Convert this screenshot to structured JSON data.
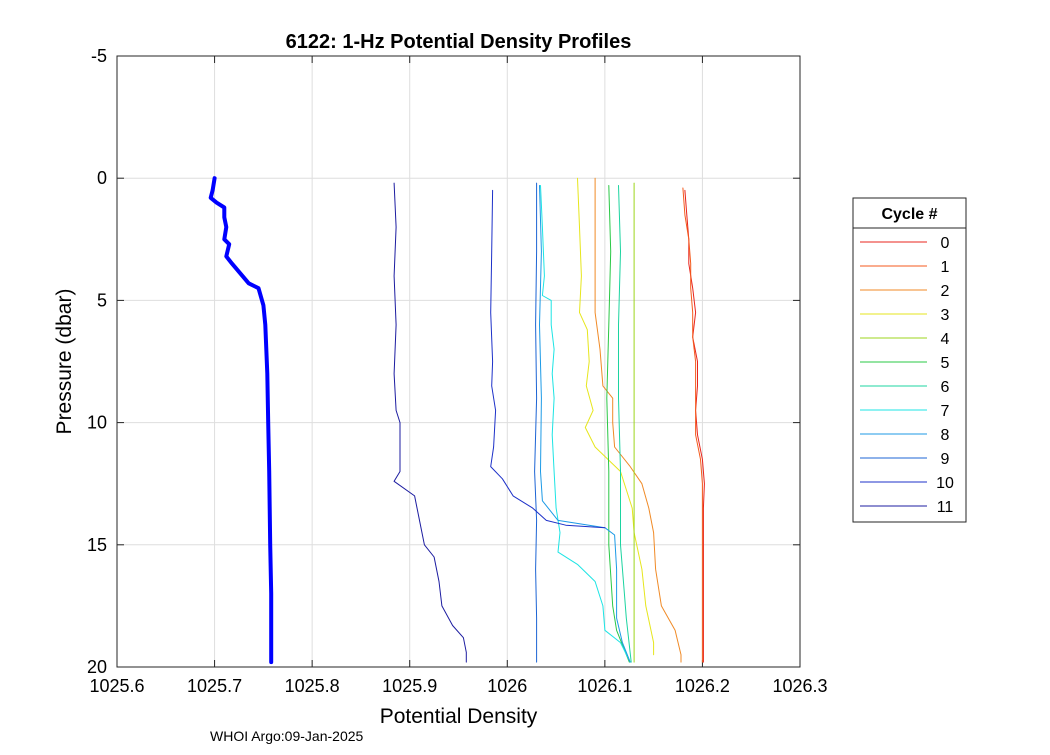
{
  "chart_data": {
    "type": "line",
    "title": "6122: 1-Hz Potential Density Profiles",
    "xlabel": "Potential Density",
    "ylabel": "Pressure (dbar)",
    "xlim": [
      1025.6,
      1026.3
    ],
    "ylim": [
      -5,
      20
    ],
    "y_reversed": true,
    "grid": true,
    "x_ticks": [
      1025.6,
      1025.7,
      1025.8,
      1025.9,
      1026,
      1026.1,
      1026.2,
      1026.3
    ],
    "x_tick_labels": [
      "1025.6",
      "1025.7",
      "1025.8",
      "1025.9",
      "1026",
      "1026.1",
      "1026.2",
      "1026.3"
    ],
    "y_ticks": [
      -5,
      0,
      5,
      10,
      15,
      20
    ],
    "y_tick_labels": [
      "-5",
      "0",
      "5",
      "10",
      "15",
      "20"
    ],
    "legend": {
      "title": "Cycle #",
      "placement": "outside-right"
    },
    "series": [
      {
        "name": "0",
        "color": "#e8241c",
        "width": 1,
        "points": [
          [
            1026.182,
            0.5
          ],
          [
            1026.184,
            1.5
          ],
          [
            1026.186,
            2.5
          ],
          [
            1026.186,
            3.5
          ],
          [
            1026.19,
            4.5
          ],
          [
            1026.193,
            5.5
          ],
          [
            1026.19,
            6.5
          ],
          [
            1026.195,
            7.5
          ],
          [
            1026.195,
            8.5
          ],
          [
            1026.193,
            9.5
          ],
          [
            1026.195,
            10.5
          ],
          [
            1026.2,
            11.5
          ],
          [
            1026.202,
            12.5
          ],
          [
            1026.201,
            13.5
          ],
          [
            1026.201,
            15
          ],
          [
            1026.201,
            17
          ],
          [
            1026.201,
            19.8
          ]
        ]
      },
      {
        "name": "1",
        "color": "#f45a1c",
        "width": 1,
        "points": [
          [
            1026.18,
            0.4
          ],
          [
            1026.182,
            1.5
          ],
          [
            1026.186,
            2.5
          ],
          [
            1026.188,
            3.5
          ],
          [
            1026.188,
            4.5
          ],
          [
            1026.19,
            5.5
          ],
          [
            1026.19,
            6.5
          ],
          [
            1026.193,
            7.5
          ],
          [
            1026.193,
            8.5
          ],
          [
            1026.193,
            9.5
          ],
          [
            1026.193,
            10.5
          ],
          [
            1026.198,
            11.5
          ],
          [
            1026.2,
            12.5
          ],
          [
            1026.2,
            13.5
          ],
          [
            1026.2,
            15
          ],
          [
            1026.2,
            17
          ],
          [
            1026.2,
            19.8
          ]
        ]
      },
      {
        "name": "2",
        "color": "#f08a26",
        "width": 1,
        "points": [
          [
            1026.09,
            0
          ],
          [
            1026.09,
            3
          ],
          [
            1026.09,
            5.5
          ],
          [
            1026.095,
            7
          ],
          [
            1026.098,
            8.5
          ],
          [
            1026.108,
            9
          ],
          [
            1026.108,
            10
          ],
          [
            1026.11,
            11
          ],
          [
            1026.126,
            11.8
          ],
          [
            1026.138,
            12.5
          ],
          [
            1026.145,
            13.5
          ],
          [
            1026.15,
            14.5
          ],
          [
            1026.152,
            16
          ],
          [
            1026.158,
            17.5
          ],
          [
            1026.172,
            18.5
          ],
          [
            1026.178,
            19.5
          ],
          [
            1026.178,
            19.8
          ]
        ]
      },
      {
        "name": "3",
        "color": "#e6e61c",
        "width": 1,
        "points": [
          [
            1026.072,
            0
          ],
          [
            1026.074,
            2
          ],
          [
            1026.076,
            4
          ],
          [
            1026.074,
            5.5
          ],
          [
            1026.082,
            6.2
          ],
          [
            1026.084,
            7.5
          ],
          [
            1026.081,
            8.5
          ],
          [
            1026.088,
            9.5
          ],
          [
            1026.08,
            10.2
          ],
          [
            1026.09,
            11
          ],
          [
            1026.116,
            12
          ],
          [
            1026.128,
            13.5
          ],
          [
            1026.13,
            14.5
          ],
          [
            1026.138,
            16
          ],
          [
            1026.142,
            17.5
          ],
          [
            1026.15,
            19
          ],
          [
            1026.15,
            19.5
          ]
        ]
      },
      {
        "name": "4",
        "color": "#9cd41c",
        "width": 1,
        "points": [
          [
            1026.13,
            0.2
          ],
          [
            1026.13,
            5
          ],
          [
            1026.13,
            10
          ],
          [
            1026.13,
            15
          ],
          [
            1026.13,
            19.8
          ]
        ]
      },
      {
        "name": "5",
        "color": "#2ac846",
        "width": 1,
        "points": [
          [
            1026.104,
            0.3
          ],
          [
            1026.106,
            3
          ],
          [
            1026.104,
            6
          ],
          [
            1026.102,
            9
          ],
          [
            1026.104,
            12
          ],
          [
            1026.104,
            15
          ],
          [
            1026.108,
            17.5
          ],
          [
            1026.112,
            18.5
          ],
          [
            1026.125,
            19.8
          ]
        ]
      },
      {
        "name": "6",
        "color": "#1cd4a0",
        "width": 1,
        "points": [
          [
            1026.114,
            0.3
          ],
          [
            1026.116,
            3
          ],
          [
            1026.114,
            6
          ],
          [
            1026.114,
            9
          ],
          [
            1026.116,
            12
          ],
          [
            1026.116,
            15
          ],
          [
            1026.12,
            17
          ],
          [
            1026.122,
            18
          ],
          [
            1026.127,
            19.8
          ]
        ]
      },
      {
        "name": "7",
        "color": "#1ce4e4",
        "width": 1,
        "points": [
          [
            1026.034,
            0.3
          ],
          [
            1026.036,
            2
          ],
          [
            1026.038,
            4
          ],
          [
            1026.036,
            4.8
          ],
          [
            1026.045,
            5
          ],
          [
            1026.045,
            6
          ],
          [
            1026.048,
            7
          ],
          [
            1026.046,
            8
          ],
          [
            1026.048,
            9
          ],
          [
            1026.046,
            10.5
          ],
          [
            1026.048,
            12
          ],
          [
            1026.05,
            13.5
          ],
          [
            1026.054,
            14.5
          ],
          [
            1026.052,
            15.3
          ],
          [
            1026.072,
            15.8
          ],
          [
            1026.09,
            16.5
          ],
          [
            1026.098,
            17.5
          ],
          [
            1026.1,
            18.5
          ],
          [
            1026.116,
            19
          ],
          [
            1026.126,
            19.8
          ]
        ]
      },
      {
        "name": "8",
        "color": "#1c9ae6",
        "width": 1,
        "points": [
          [
            1026.033,
            0.3
          ],
          [
            1026.035,
            3
          ],
          [
            1026.033,
            6
          ],
          [
            1026.035,
            9
          ],
          [
            1026.034,
            12
          ],
          [
            1026.036,
            13.2
          ],
          [
            1026.052,
            14
          ],
          [
            1026.1,
            14.3
          ],
          [
            1026.11,
            14.6
          ],
          [
            1026.112,
            16
          ],
          [
            1026.112,
            18
          ],
          [
            1026.118,
            19
          ],
          [
            1026.126,
            19.8
          ]
        ]
      },
      {
        "name": "9",
        "color": "#1c64d4",
        "width": 1,
        "points": [
          [
            1026.03,
            0.2
          ],
          [
            1026.03,
            3
          ],
          [
            1026.029,
            6
          ],
          [
            1026.03,
            9
          ],
          [
            1026.028,
            12
          ],
          [
            1026.03,
            14
          ],
          [
            1026.029,
            16
          ],
          [
            1026.03,
            18
          ],
          [
            1026.03,
            19.8
          ]
        ]
      },
      {
        "name": "10",
        "color": "#1c30c8",
        "width": 1,
        "points": [
          [
            1025.985,
            0.5
          ],
          [
            1025.984,
            3
          ],
          [
            1025.983,
            5.5
          ],
          [
            1025.985,
            7.5
          ],
          [
            1025.984,
            8.5
          ],
          [
            1025.988,
            9.5
          ],
          [
            1025.986,
            11
          ],
          [
            1025.983,
            11.8
          ],
          [
            1025.995,
            12.3
          ],
          [
            1026.006,
            13
          ],
          [
            1026.026,
            13.5
          ],
          [
            1026.04,
            14
          ],
          [
            1026.06,
            14.2
          ],
          [
            1026.1,
            14.3
          ]
        ]
      },
      {
        "name": "11",
        "color": "#1c1ca0",
        "width": 1,
        "points": [
          [
            1025.884,
            0.2
          ],
          [
            1025.886,
            2
          ],
          [
            1025.884,
            4
          ],
          [
            1025.886,
            6
          ],
          [
            1025.884,
            8
          ],
          [
            1025.886,
            9.5
          ],
          [
            1025.89,
            10
          ],
          [
            1025.89,
            12
          ],
          [
            1025.884,
            12.4
          ],
          [
            1025.905,
            13
          ],
          [
            1025.91,
            14
          ],
          [
            1025.915,
            15
          ],
          [
            1025.925,
            15.5
          ],
          [
            1025.93,
            16.5
          ],
          [
            1025.933,
            17.5
          ],
          [
            1025.944,
            18.3
          ],
          [
            1025.955,
            18.8
          ],
          [
            1025.958,
            19.4
          ],
          [
            1025.958,
            19.8
          ]
        ]
      },
      {
        "name": "",
        "color": "#0000ff",
        "width": 4,
        "points": [
          [
            1025.7,
            0
          ],
          [
            1025.698,
            0.5
          ],
          [
            1025.696,
            0.8
          ],
          [
            1025.702,
            1
          ],
          [
            1025.71,
            1.2
          ],
          [
            1025.71,
            1.6
          ],
          [
            1025.712,
            2
          ],
          [
            1025.71,
            2.5
          ],
          [
            1025.715,
            2.7
          ],
          [
            1025.712,
            3.2
          ],
          [
            1025.718,
            3.5
          ],
          [
            1025.735,
            4.3
          ],
          [
            1025.745,
            4.5
          ],
          [
            1025.75,
            5.2
          ],
          [
            1025.752,
            6
          ],
          [
            1025.754,
            8
          ],
          [
            1025.755,
            10
          ],
          [
            1025.756,
            12
          ],
          [
            1025.757,
            15
          ],
          [
            1025.758,
            17
          ],
          [
            1025.758,
            19.8
          ]
        ]
      }
    ]
  },
  "footer": "WHOI Argo:09-Jan-2025"
}
